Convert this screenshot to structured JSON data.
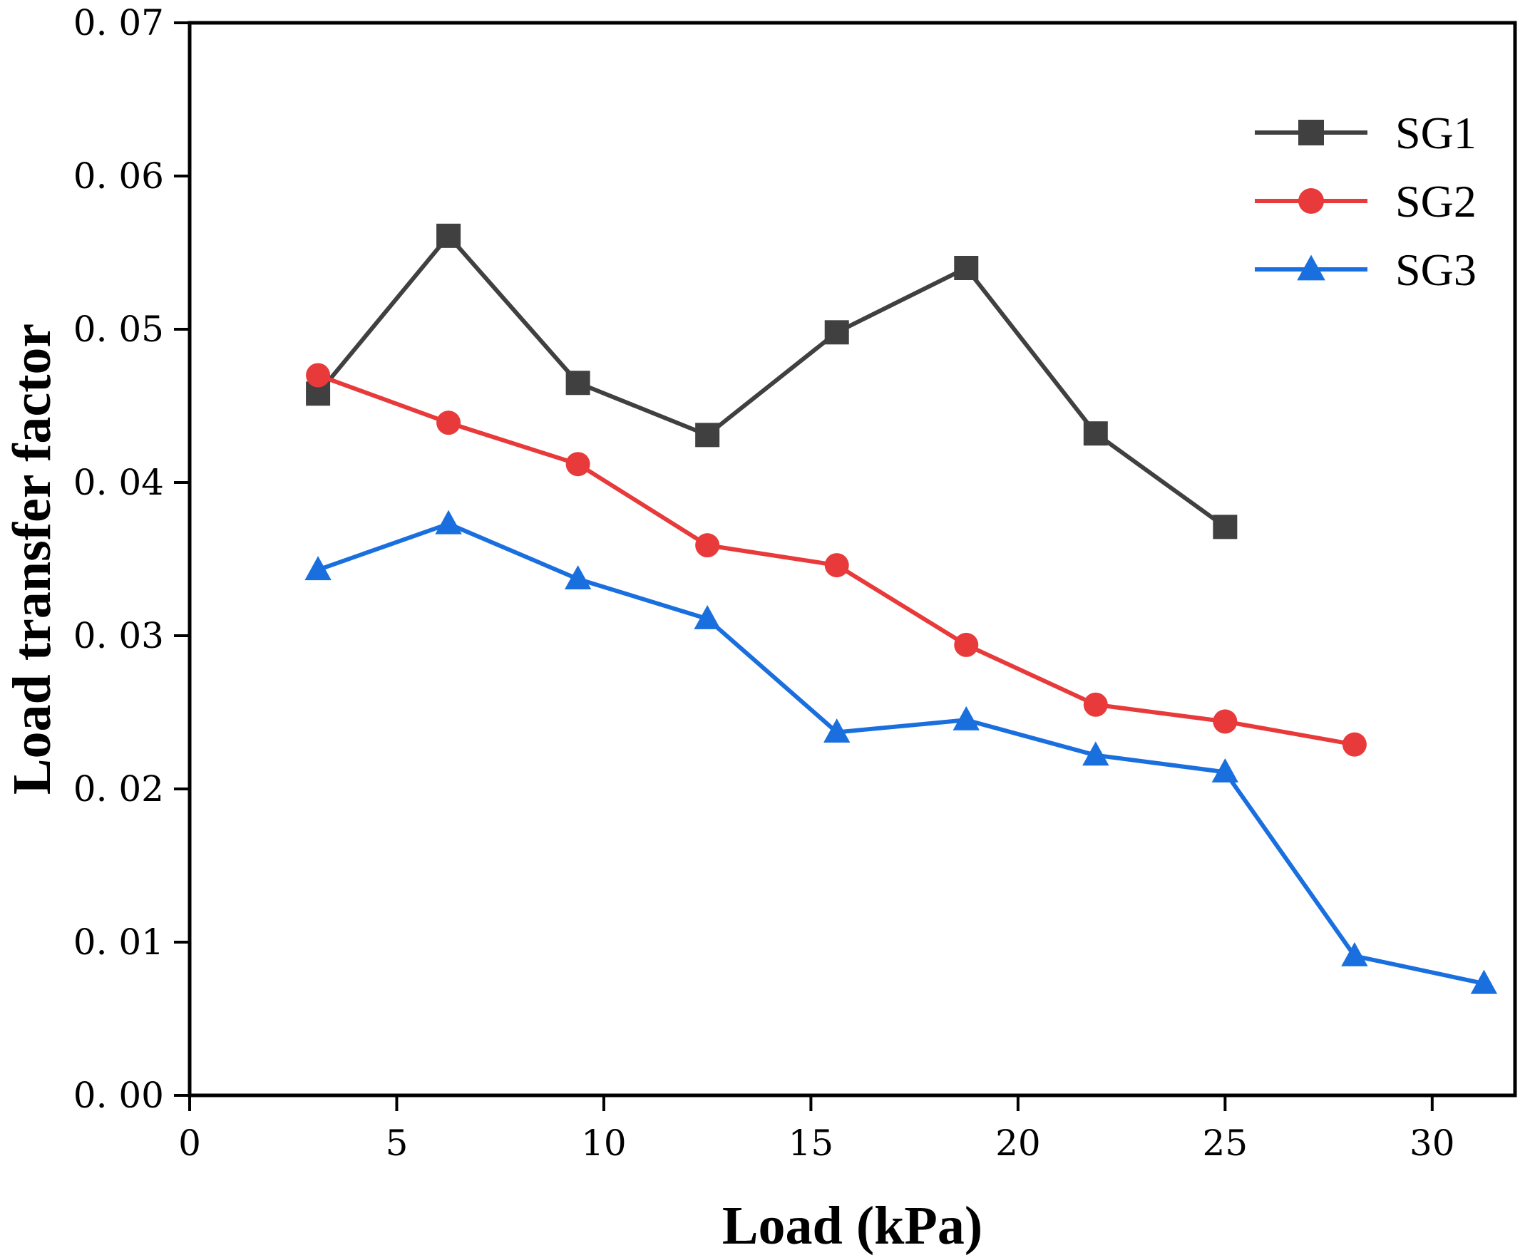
{
  "chart_data": {
    "type": "line",
    "title": "",
    "xlabel": "Load (kPa)",
    "ylabel": "Load transfer factor",
    "xlim": [
      0,
      32
    ],
    "ylim": [
      0,
      0.07
    ],
    "xticks": [
      0,
      5,
      10,
      15,
      20,
      25,
      30
    ],
    "xtick_labels": [
      "0",
      "5",
      "10",
      "15",
      "20",
      "25",
      "30"
    ],
    "yticks": [
      0,
      0.01,
      0.02,
      0.03,
      0.04,
      0.05,
      0.06,
      0.07
    ],
    "ytick_labels": [
      "0. 00",
      "0. 01",
      "0. 02",
      "0. 03",
      "0. 04",
      "0. 05",
      "0. 06",
      "0. 07"
    ],
    "legend_position": "top-right",
    "grid": false,
    "series": [
      {
        "name": "SG1",
        "color": "#404040",
        "marker": "square",
        "x": [
          3.1,
          6.25,
          9.375,
          12.5,
          15.625,
          18.75,
          21.875,
          25.0
        ],
        "y": [
          0.0458,
          0.0561,
          0.0465,
          0.0431,
          0.0498,
          0.054,
          0.0432,
          0.0371
        ]
      },
      {
        "name": "SG2",
        "color": "#e83a3a",
        "marker": "circle",
        "x": [
          3.1,
          6.25,
          9.375,
          12.5,
          15.625,
          18.75,
          21.875,
          25.0,
          28.125
        ],
        "y": [
          0.047,
          0.0439,
          0.0412,
          0.0359,
          0.0346,
          0.0294,
          0.0255,
          0.0244,
          0.0229
        ]
      },
      {
        "name": "SG3",
        "color": "#1a6fdf",
        "marker": "triangle",
        "x": [
          3.1,
          6.25,
          9.375,
          12.5,
          15.625,
          18.75,
          21.875,
          25.0,
          28.125,
          31.25
        ],
        "y": [
          0.0343,
          0.0373,
          0.0337,
          0.0311,
          0.0237,
          0.0245,
          0.0222,
          0.0211,
          0.0091,
          0.0073
        ]
      }
    ]
  }
}
